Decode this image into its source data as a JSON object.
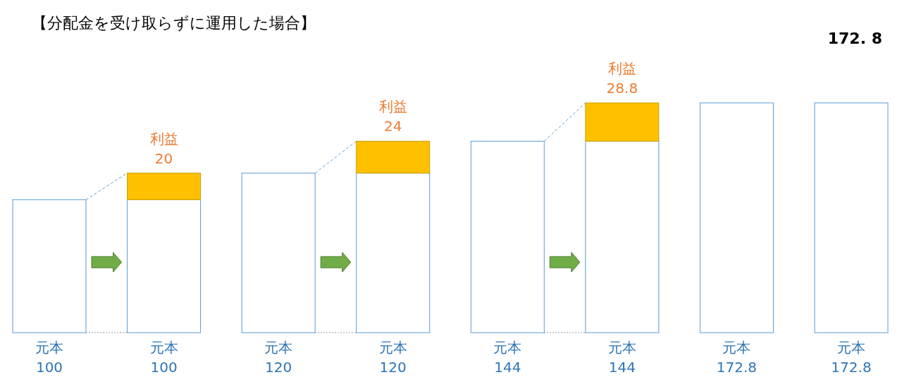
{
  "chart_data": {
    "type": "bar",
    "stacked": true,
    "title": "【分配金を受け取らずに運用した場合】",
    "categories": [
      null,
      null,
      null,
      null,
      null,
      null,
      null,
      null
    ],
    "series": [
      {
        "name": "元本",
        "color": "#ffffff",
        "values": [
          100,
          100,
          120,
          120,
          144,
          144,
          172.8,
          172.8
        ],
        "value_labels": [
          "100",
          "100",
          "120",
          "120",
          "144",
          "144",
          "172.8",
          "172.8"
        ]
      },
      {
        "name": "利益",
        "color": "#ffc000",
        "values": [
          null,
          20,
          null,
          24,
          null,
          28.8,
          null,
          null
        ],
        "value_labels": [
          null,
          "20",
          null,
          "24",
          null,
          "28.8",
          null,
          null
        ]
      }
    ],
    "annotations": [
      "172. 8"
    ]
  }
}
